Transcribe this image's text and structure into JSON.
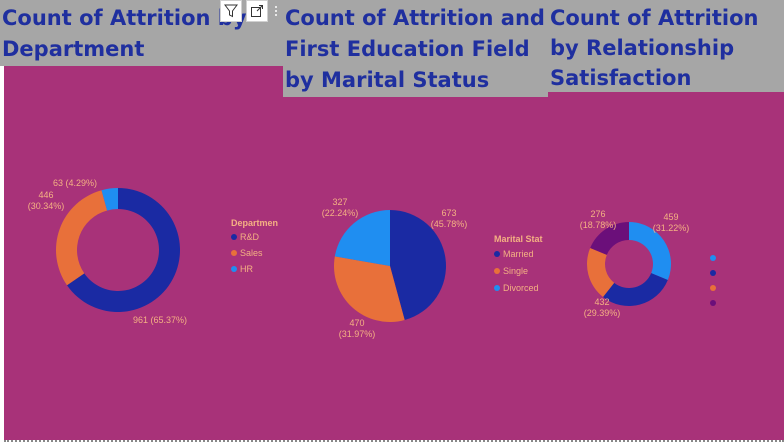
{
  "titles": {
    "dept": "Count of Attrition by Department",
    "edu": "Count of Attrition and First Education Field by Marital Status",
    "rel": "Count of Attrition by Relationship Satisfaction"
  },
  "toolbar": {
    "filter_icon": "filter-icon",
    "focus_icon": "focus-mode-icon",
    "more_icon": "more-options-icon"
  },
  "colors": {
    "background": "#a83279",
    "header": "#a6a6a6",
    "title": "#1f2f9f",
    "label": "#f4b183"
  },
  "chart_data": [
    {
      "type": "pie",
      "variant": "donut",
      "legend_title": "Departmen",
      "categories": [
        "R&D",
        "Sales",
        "HR"
      ],
      "values": [
        961,
        446,
        63
      ],
      "labels": [
        "961 (65.37%)",
        "446 (30.34%)",
        "63 (4.29%)"
      ],
      "colors": [
        "#1a2aa3",
        "#e8703a",
        "#1f8ef1"
      ]
    },
    {
      "type": "pie",
      "legend_title": "Marital Stat",
      "categories": [
        "Married",
        "Single",
        "Divorced"
      ],
      "values": [
        673,
        470,
        327
      ],
      "labels": [
        "673 (45.78%)",
        "470 (31.97%)",
        "327 (22.24%)"
      ],
      "colors": [
        "#1a2aa3",
        "#e8703a",
        "#1f8ef1"
      ]
    },
    {
      "type": "pie",
      "variant": "donut",
      "legend_title": "",
      "categories": [
        "",
        "",
        "",
        ""
      ],
      "values": [
        459,
        432,
        303,
        276
      ],
      "labels": [
        "459 (31.22%)",
        "432 (29.39%)",
        "",
        "276 (18.78%)"
      ],
      "colors": [
        "#1f8ef1",
        "#1a2aa3",
        "#e8703a",
        "#6b0f7a"
      ],
      "legend_dot_colors": [
        "#1f8ef1",
        "#1a2aa3",
        "#e8703a",
        "#6b0f7a"
      ]
    }
  ]
}
